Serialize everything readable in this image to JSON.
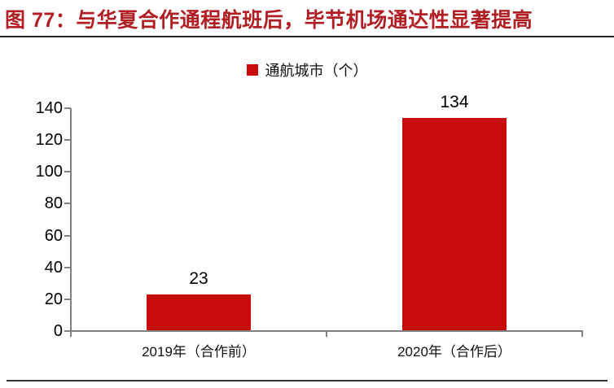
{
  "header": {
    "title": "图 77：与华夏合作通程航班后，毕节机场通达性显著提高"
  },
  "colors": {
    "title": "#B01E23",
    "bar": "#C80B0B",
    "axis": "#808080",
    "rule": "#262626"
  },
  "chart_data": {
    "type": "bar",
    "title": "图 77：与华夏合作通程航班后，毕节机场通达性显著提高",
    "legend": "通航城市（个）",
    "legend_position": "top-center",
    "categories": [
      "2019年（合作前）",
      "2020年（合作后）"
    ],
    "values": [
      23,
      134
    ],
    "data_labels": [
      "23",
      "134"
    ],
    "xlabel": "",
    "ylabel": "",
    "ylim": [
      0,
      140
    ],
    "yticks": [
      0,
      20,
      40,
      60,
      80,
      100,
      120,
      140
    ],
    "grid": "off",
    "bar_color": "#C80B0B"
  }
}
